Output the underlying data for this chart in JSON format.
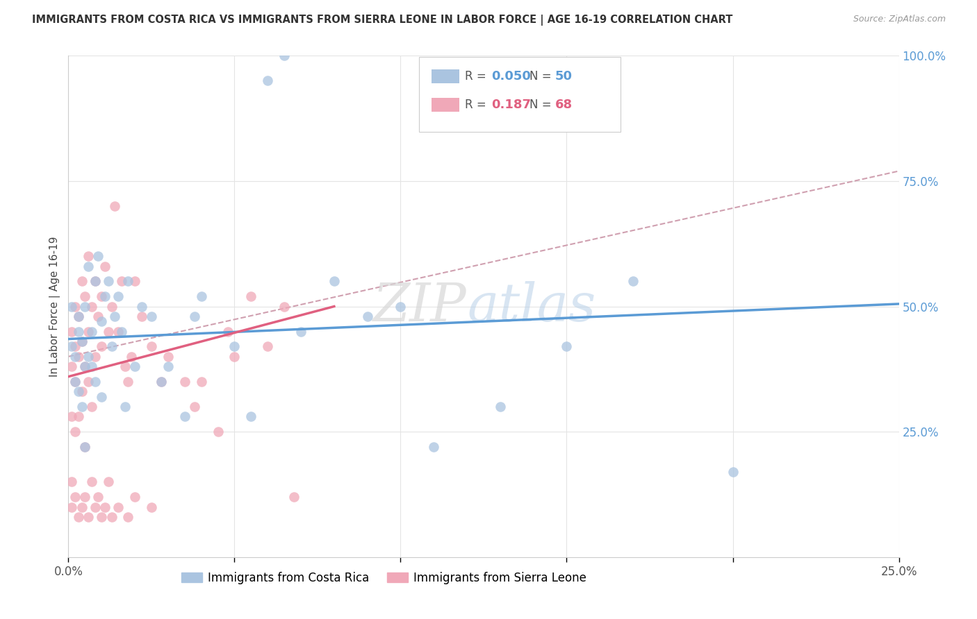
{
  "title": "IMMIGRANTS FROM COSTA RICA VS IMMIGRANTS FROM SIERRA LEONE IN LABOR FORCE | AGE 16-19 CORRELATION CHART",
  "source": "Source: ZipAtlas.com",
  "ylabel": "In Labor Force | Age 16-19",
  "xlim": [
    0.0,
    0.25
  ],
  "ylim": [
    0.0,
    1.0
  ],
  "color_blue": "#aac4e0",
  "color_pink": "#f0a8b8",
  "line_blue": "#5b9bd5",
  "line_pink": "#e06080",
  "line_ref_color": "#d0a0b0",
  "bg_color": "#ffffff",
  "grid_color": "#e4e4e4",
  "legend_label_blue": "Immigrants from Costa Rica",
  "legend_label_pink": "Immigrants from Sierra Leone",
  "watermark": "ZIPatlas",
  "costa_rica_x": [
    0.001,
    0.001,
    0.002,
    0.002,
    0.003,
    0.003,
    0.003,
    0.004,
    0.004,
    0.005,
    0.005,
    0.005,
    0.006,
    0.006,
    0.007,
    0.007,
    0.008,
    0.008,
    0.009,
    0.01,
    0.01,
    0.011,
    0.012,
    0.013,
    0.014,
    0.015,
    0.016,
    0.017,
    0.018,
    0.02,
    0.022,
    0.025,
    0.028,
    0.03,
    0.035,
    0.038,
    0.04,
    0.05,
    0.055,
    0.06,
    0.065,
    0.07,
    0.08,
    0.09,
    0.1,
    0.11,
    0.13,
    0.15,
    0.17,
    0.2
  ],
  "costa_rica_y": [
    0.5,
    0.42,
    0.4,
    0.35,
    0.45,
    0.48,
    0.33,
    0.43,
    0.3,
    0.5,
    0.38,
    0.22,
    0.58,
    0.4,
    0.45,
    0.38,
    0.55,
    0.35,
    0.6,
    0.47,
    0.32,
    0.52,
    0.55,
    0.42,
    0.48,
    0.52,
    0.45,
    0.3,
    0.55,
    0.38,
    0.5,
    0.48,
    0.35,
    0.38,
    0.28,
    0.48,
    0.52,
    0.42,
    0.28,
    0.95,
    1.0,
    0.45,
    0.55,
    0.48,
    0.5,
    0.22,
    0.3,
    0.42,
    0.55,
    0.17
  ],
  "sierra_leone_x": [
    0.001,
    0.001,
    0.001,
    0.002,
    0.002,
    0.002,
    0.002,
    0.003,
    0.003,
    0.003,
    0.004,
    0.004,
    0.004,
    0.005,
    0.005,
    0.005,
    0.006,
    0.006,
    0.006,
    0.007,
    0.007,
    0.008,
    0.008,
    0.009,
    0.01,
    0.01,
    0.011,
    0.012,
    0.013,
    0.014,
    0.015,
    0.016,
    0.017,
    0.018,
    0.019,
    0.02,
    0.022,
    0.025,
    0.028,
    0.03,
    0.035,
    0.038,
    0.04,
    0.045,
    0.048,
    0.05,
    0.055,
    0.06,
    0.065,
    0.068,
    0.001,
    0.001,
    0.002,
    0.003,
    0.004,
    0.005,
    0.006,
    0.007,
    0.008,
    0.009,
    0.01,
    0.011,
    0.012,
    0.013,
    0.015,
    0.018,
    0.02,
    0.025
  ],
  "sierra_leone_y": [
    0.45,
    0.38,
    0.28,
    0.5,
    0.42,
    0.35,
    0.25,
    0.48,
    0.4,
    0.28,
    0.55,
    0.43,
    0.33,
    0.52,
    0.38,
    0.22,
    0.6,
    0.45,
    0.35,
    0.5,
    0.3,
    0.55,
    0.4,
    0.48,
    0.52,
    0.42,
    0.58,
    0.45,
    0.5,
    0.7,
    0.45,
    0.55,
    0.38,
    0.35,
    0.4,
    0.55,
    0.48,
    0.42,
    0.35,
    0.4,
    0.35,
    0.3,
    0.35,
    0.25,
    0.45,
    0.4,
    0.52,
    0.42,
    0.5,
    0.12,
    0.15,
    0.1,
    0.12,
    0.08,
    0.1,
    0.12,
    0.08,
    0.15,
    0.1,
    0.12,
    0.08,
    0.1,
    0.15,
    0.08,
    0.1,
    0.08,
    0.12,
    0.1
  ],
  "ref_line_x0": 0.0,
  "ref_line_y0": 0.4,
  "ref_line_x1": 0.25,
  "ref_line_y1": 0.77,
  "blue_line_x0": 0.0,
  "blue_line_y0": 0.435,
  "blue_line_x1": 0.25,
  "blue_line_y1": 0.505,
  "pink_line_x0": 0.0,
  "pink_line_y0": 0.36,
  "pink_line_x1": 0.08,
  "pink_line_y1": 0.5
}
